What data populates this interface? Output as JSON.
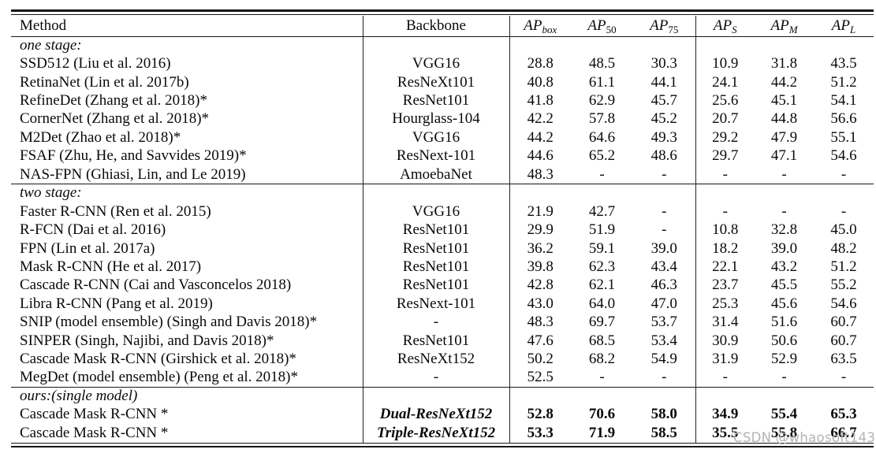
{
  "watermark": "CSDN @whaosoft143",
  "table": {
    "header": {
      "method": "Method",
      "backbone": "Backbone",
      "metrics": [
        {
          "base": "AP",
          "sub": "box",
          "sub_italic": true
        },
        {
          "base": "AP",
          "sub": "50",
          "sub_italic": false
        },
        {
          "base": "AP",
          "sub": "75",
          "sub_italic": false
        },
        {
          "base": "AP",
          "sub": "S",
          "sub_italic": true
        },
        {
          "base": "AP",
          "sub": "M",
          "sub_italic": true
        },
        {
          "base": "AP",
          "sub": "L",
          "sub_italic": true
        }
      ]
    },
    "sections": [
      {
        "label": "one stage:",
        "rows": [
          {
            "method": "SSD512 (Liu et al. 2016)",
            "backbone": "VGG16",
            "values": [
              "28.8",
              "48.5",
              "30.3",
              "10.9",
              "31.8",
              "43.5"
            ],
            "bold": false
          },
          {
            "method": "RetinaNet (Lin et al. 2017b)",
            "backbone": "ResNeXt101",
            "values": [
              "40.8",
              "61.1",
              "44.1",
              "24.1",
              "44.2",
              "51.2"
            ],
            "bold": false
          },
          {
            "method": "RefineDet (Zhang et al. 2018)*",
            "backbone": "ResNet101",
            "values": [
              "41.8",
              "62.9",
              "45.7",
              "25.6",
              "45.1",
              "54.1"
            ],
            "bold": false
          },
          {
            "method": "CornerNet (Zhang et al. 2018)*",
            "backbone": "Hourglass-104",
            "values": [
              "42.2",
              "57.8",
              "45.2",
              "20.7",
              "44.8",
              "56.6"
            ],
            "bold": false
          },
          {
            "method": "M2Det (Zhao et al. 2018)*",
            "backbone": "VGG16",
            "values": [
              "44.2",
              "64.6",
              "49.3",
              "29.2",
              "47.9",
              "55.1"
            ],
            "bold": false
          },
          {
            "method": "FSAF (Zhu, He, and Savvides 2019)*",
            "backbone": "ResNext-101",
            "values": [
              "44.6",
              "65.2",
              "48.6",
              "29.7",
              "47.1",
              "54.6"
            ],
            "bold": false
          },
          {
            "method": "NAS-FPN (Ghiasi, Lin, and Le 2019)",
            "backbone": "AmoebaNet",
            "values": [
              "48.3",
              "-",
              "-",
              "-",
              "-",
              "-"
            ],
            "bold": false
          }
        ]
      },
      {
        "label": "two stage:",
        "rows": [
          {
            "method": "Faster R-CNN (Ren et al. 2015)",
            "backbone": "VGG16",
            "values": [
              "21.9",
              "42.7",
              "-",
              "-",
              "-",
              "-"
            ],
            "bold": false
          },
          {
            "method": "R-FCN (Dai et al. 2016)",
            "backbone": "ResNet101",
            "values": [
              "29.9",
              "51.9",
              "-",
              "10.8",
              "32.8",
              "45.0"
            ],
            "bold": false
          },
          {
            "method": "FPN (Lin et al. 2017a)",
            "backbone": "ResNet101",
            "values": [
              "36.2",
              "59.1",
              "39.0",
              "18.2",
              "39.0",
              "48.2"
            ],
            "bold": false
          },
          {
            "method": "Mask R-CNN (He et al. 2017)",
            "backbone": "ResNet101",
            "values": [
              "39.8",
              "62.3",
              "43.4",
              "22.1",
              "43.2",
              "51.2"
            ],
            "bold": false
          },
          {
            "method": "Cascade R-CNN (Cai and Vasconcelos 2018)",
            "backbone": "ResNet101",
            "values": [
              "42.8",
              "62.1",
              "46.3",
              "23.7",
              "45.5",
              "55.2"
            ],
            "bold": false
          },
          {
            "method": "Libra R-CNN (Pang et al. 2019)",
            "backbone": "ResNext-101",
            "values": [
              "43.0",
              "64.0",
              "47.0",
              "25.3",
              "45.6",
              "54.6"
            ],
            "bold": false
          },
          {
            "method": "SNIP (model ensemble) (Singh and Davis 2018)*",
            "backbone": "-",
            "values": [
              "48.3",
              "69.7",
              "53.7",
              "31.4",
              "51.6",
              "60.7"
            ],
            "bold": false
          },
          {
            "method": "SINPER (Singh, Najibi, and Davis 2018)*",
            "backbone": "ResNet101",
            "values": [
              "47.6",
              "68.5",
              "53.4",
              "30.9",
              "50.6",
              "60.7"
            ],
            "bold": false
          },
          {
            "method": "Cascade Mask R-CNN (Girshick et al. 2018)*",
            "backbone": "ResNeXt152",
            "values": [
              "50.2",
              "68.2",
              "54.9",
              "31.9",
              "52.9",
              "63.5"
            ],
            "bold": false
          },
          {
            "method": "MegDet (model ensemble) (Peng et al. 2018)*",
            "backbone": "-",
            "values": [
              "52.5",
              "-",
              "-",
              "-",
              "-",
              "-"
            ],
            "bold": false
          }
        ]
      },
      {
        "label": "ours:(single model)",
        "rows": [
          {
            "method": "Cascade Mask R-CNN *",
            "backbone": "Dual-ResNeXt152",
            "values": [
              "52.8",
              "70.6",
              "58.0",
              "34.9",
              "55.4",
              "65.3"
            ],
            "bold": true
          },
          {
            "method": "Cascade Mask R-CNN *",
            "backbone": "Triple-ResNeXt152",
            "values": [
              "53.3",
              "71.9",
              "58.5",
              "35.5",
              "55.8",
              "66.7"
            ],
            "bold": true
          }
        ]
      }
    ]
  }
}
